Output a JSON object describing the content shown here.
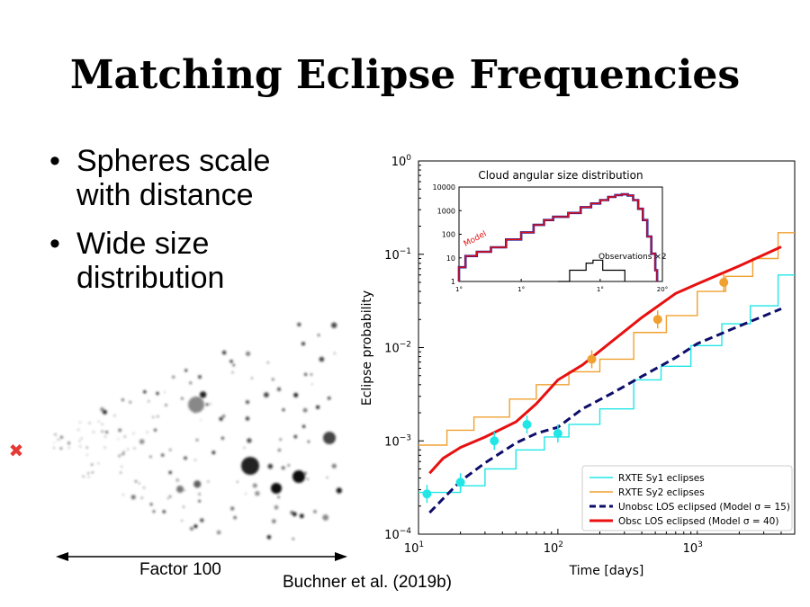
{
  "title": "Matching Eclipse Frequencies",
  "bullets": [
    {
      "line1": "Spheres scale",
      "line2": "with distance"
    },
    {
      "line1": "Wide size",
      "line2": "distribution"
    }
  ],
  "illustration": {
    "observer_marker": "✖",
    "observer_color": "#e53935",
    "caption": "Factor 100"
  },
  "citation": "Buchner et al. (2019b)",
  "chart_data": {
    "type": "line",
    "x_scale": "log",
    "y_scale": "log",
    "xlim": [
      10,
      5000
    ],
    "ylim": [
      0.0001,
      1
    ],
    "xlabel": "Time [days]",
    "ylabel": "Eclipse probability",
    "x_ticks": [
      {
        "value": 10,
        "base": "10",
        "exp": "1"
      },
      {
        "value": 100,
        "base": "10",
        "exp": "2"
      },
      {
        "value": 1000,
        "base": "10",
        "exp": "3"
      }
    ],
    "y_ticks": [
      {
        "value": 0.0001,
        "base": "10",
        "exp": "−4"
      },
      {
        "value": 0.001,
        "base": "10",
        "exp": "−3"
      },
      {
        "value": 0.01,
        "base": "10",
        "exp": "−2"
      },
      {
        "value": 0.1,
        "base": "10",
        "exp": "−1"
      },
      {
        "value": 1,
        "base": "10",
        "exp": "0"
      }
    ],
    "legend_position": "lower-right",
    "series": [
      {
        "name": "RXTE Sy1 eclipses",
        "style": "step",
        "color": "#22e6e6",
        "x": [
          10,
          12,
          20,
          30,
          50,
          80,
          120,
          200,
          350,
          550,
          900,
          1500,
          2400,
          3800,
          5000
        ],
        "y": [
          0.00028,
          0.00028,
          0.00033,
          0.0005,
          0.0008,
          0.0011,
          0.0015,
          0.0022,
          0.0045,
          0.0063,
          0.0105,
          0.018,
          0.028,
          0.06,
          0.06
        ]
      },
      {
        "name": "RXTE Sy2 eclipses",
        "style": "step",
        "color": "#f0a030",
        "x": [
          10,
          16,
          25,
          45,
          70,
          120,
          200,
          350,
          600,
          1000,
          1600,
          2500,
          3800,
          5000
        ],
        "y": [
          0.0009,
          0.0013,
          0.0018,
          0.0028,
          0.004,
          0.0055,
          0.0075,
          0.0145,
          0.022,
          0.04,
          0.058,
          0.09,
          0.17,
          0.17
        ]
      },
      {
        "name": "Unobsc LOS eclipsed (Model σ = 15)",
        "style": "dashed",
        "color": "#0d0d6b",
        "x": [
          12,
          15,
          20,
          30,
          50,
          70,
          100,
          150,
          250,
          400,
          700,
          1000,
          2000,
          4000
        ],
        "y": [
          0.00017,
          0.00024,
          0.00037,
          0.00058,
          0.00095,
          0.0012,
          0.0014,
          0.0022,
          0.0033,
          0.0049,
          0.0078,
          0.011,
          0.017,
          0.026
        ]
      },
      {
        "name": "Obsc LOS eclipsed (Model σ = 40)",
        "style": "solid",
        "color": "#e81010",
        "x": [
          12,
          15,
          20,
          30,
          50,
          70,
          100,
          150,
          250,
          400,
          700,
          1000,
          2000,
          4000
        ],
        "y": [
          0.00045,
          0.00065,
          0.00085,
          0.0011,
          0.0016,
          0.0025,
          0.0045,
          0.0065,
          0.012,
          0.021,
          0.038,
          0.048,
          0.075,
          0.12
        ]
      }
    ],
    "points": [
      {
        "series": "RXTE Sy1 eclipses",
        "color": "#22e6e6",
        "x": [
          11.5,
          20,
          35,
          60,
          100
        ],
        "y": [
          0.00027,
          0.00036,
          0.001,
          0.0015,
          0.0012
        ]
      },
      {
        "series": "RXTE Sy2 eclipses",
        "color": "#f0a030",
        "x": [
          175,
          520,
          1550
        ],
        "y": [
          0.0075,
          0.02,
          0.05
        ]
      }
    ],
    "inset": {
      "type": "step",
      "title": "Cloud angular size distribution",
      "xlim": [
        1,
        20
      ],
      "ylim": [
        1,
        10000
      ],
      "x_ticks": [
        "1°",
        "1°",
        "1°",
        "20°"
      ],
      "y_ticks": [
        "10000",
        "1000",
        "100",
        "10",
        "1"
      ],
      "model_label": "Model",
      "observations_label": "Observations ×2",
      "model_color": "#e81010",
      "model_edge_color": "#1a1aa0",
      "model": {
        "x": [
          1,
          1.1,
          1.3,
          1.6,
          2,
          2.5,
          3,
          3.5,
          4,
          5,
          6,
          7,
          8,
          9,
          10,
          11,
          12,
          13,
          14,
          15,
          16,
          17,
          18,
          18.5
        ],
        "y": [
          4,
          12,
          18,
          28,
          60,
          120,
          250,
          400,
          550,
          800,
          1400,
          2000,
          2800,
          3800,
          4600,
          4900,
          4400,
          2800,
          1200,
          400,
          80,
          15,
          3,
          1
        ]
      },
      "observations": {
        "x": [
          4.3,
          5.1,
          6.5,
          7.2,
          8.3,
          9.2,
          11.5
        ],
        "y": [
          1,
          3,
          6,
          8,
          3,
          3,
          1
        ]
      }
    }
  }
}
